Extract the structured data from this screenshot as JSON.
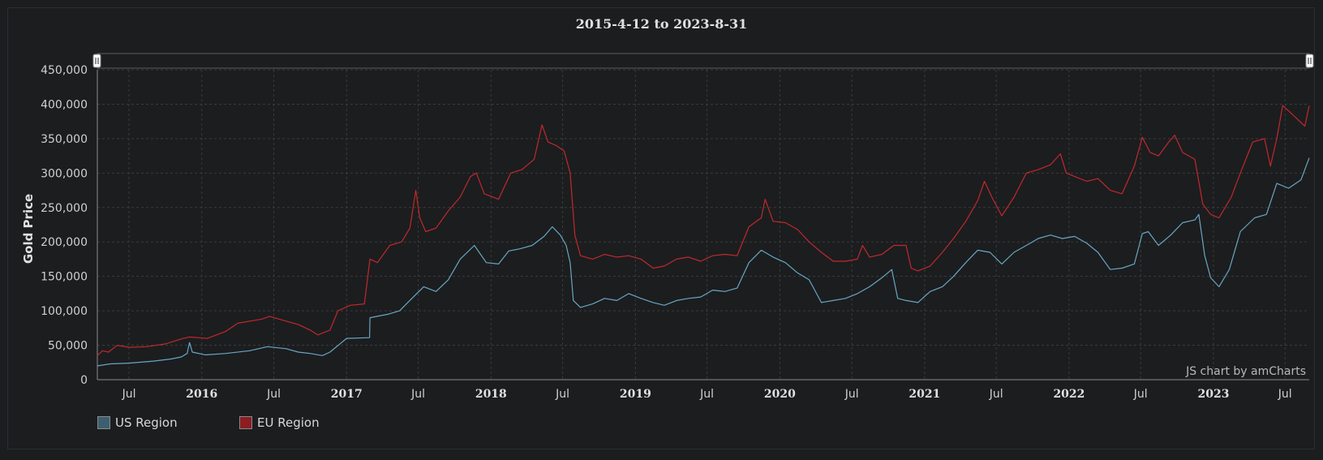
{
  "chart_data": {
    "type": "line",
    "title": "2015-4-12 to 2023-8-31",
    "xlabel": "",
    "ylabel": "Gold Price",
    "ylim": [
      0,
      450000
    ],
    "xlim": [
      "2015-04-12",
      "2023-08-31"
    ],
    "grid": true,
    "legend_position": "bottom-left",
    "credit": "JS chart by amCharts",
    "y_ticks": [
      "0",
      "50,000",
      "100,000",
      "150,000",
      "200,000",
      "250,000",
      "300,000",
      "350,000",
      "400,000",
      "450,000"
    ],
    "x_ticks": [
      {
        "label": "Jul",
        "date": "2015-07-01",
        "year": false
      },
      {
        "label": "2016",
        "date": "2016-01-01",
        "year": true
      },
      {
        "label": "Jul",
        "date": "2016-07-01",
        "year": false
      },
      {
        "label": "2017",
        "date": "2017-01-01",
        "year": true
      },
      {
        "label": "Jul",
        "date": "2017-07-01",
        "year": false
      },
      {
        "label": "2018",
        "date": "2018-01-01",
        "year": true
      },
      {
        "label": "Jul",
        "date": "2018-07-01",
        "year": false
      },
      {
        "label": "2019",
        "date": "2019-01-01",
        "year": true
      },
      {
        "label": "Jul",
        "date": "2019-07-01",
        "year": false
      },
      {
        "label": "2020",
        "date": "2020-01-01",
        "year": true
      },
      {
        "label": "Jul",
        "date": "2020-07-01",
        "year": false
      },
      {
        "label": "2021",
        "date": "2021-01-01",
        "year": true
      },
      {
        "label": "Jul",
        "date": "2021-07-01",
        "year": false
      },
      {
        "label": "2022",
        "date": "2022-01-01",
        "year": true
      },
      {
        "label": "Jul",
        "date": "2022-07-01",
        "year": false
      },
      {
        "label": "2023",
        "date": "2023-01-01",
        "year": true
      },
      {
        "label": "Jul",
        "date": "2023-07-01",
        "year": false
      }
    ],
    "series": [
      {
        "name": "US Region",
        "color": "#67a7c4",
        "points": [
          [
            "2015-04-12",
            20000
          ],
          [
            "2015-05-15",
            23000
          ],
          [
            "2015-07-01",
            24000
          ],
          [
            "2015-09-01",
            27000
          ],
          [
            "2015-10-15",
            30000
          ],
          [
            "2015-11-10",
            33000
          ],
          [
            "2015-11-25",
            38000
          ],
          [
            "2015-12-01",
            54000
          ],
          [
            "2015-12-08",
            40000
          ],
          [
            "2016-01-10",
            36000
          ],
          [
            "2016-03-01",
            38000
          ],
          [
            "2016-05-01",
            42000
          ],
          [
            "2016-06-15",
            48000
          ],
          [
            "2016-08-01",
            45000
          ],
          [
            "2016-09-01",
            40000
          ],
          [
            "2016-10-01",
            38000
          ],
          [
            "2016-11-01",
            35000
          ],
          [
            "2016-11-20",
            40000
          ],
          [
            "2016-12-15",
            52000
          ],
          [
            "2017-01-01",
            60000
          ],
          [
            "2017-02-28",
            61000
          ],
          [
            "2017-03-01",
            90000
          ],
          [
            "2017-04-15",
            95000
          ],
          [
            "2017-05-15",
            100000
          ],
          [
            "2017-06-15",
            118000
          ],
          [
            "2017-07-15",
            135000
          ],
          [
            "2017-08-15",
            128000
          ],
          [
            "2017-09-15",
            145000
          ],
          [
            "2017-10-15",
            175000
          ],
          [
            "2017-11-20",
            195000
          ],
          [
            "2017-12-20",
            170000
          ],
          [
            "2018-01-20",
            168000
          ],
          [
            "2018-02-15",
            187000
          ],
          [
            "2018-03-15",
            190000
          ],
          [
            "2018-04-15",
            195000
          ],
          [
            "2018-05-15",
            208000
          ],
          [
            "2018-06-05",
            222000
          ],
          [
            "2018-06-25",
            210000
          ],
          [
            "2018-07-10",
            195000
          ],
          [
            "2018-07-20",
            170000
          ],
          [
            "2018-07-28",
            115000
          ],
          [
            "2018-08-15",
            105000
          ],
          [
            "2018-09-15",
            110000
          ],
          [
            "2018-10-15",
            118000
          ],
          [
            "2018-11-15",
            115000
          ],
          [
            "2018-12-15",
            125000
          ],
          [
            "2019-01-15",
            118000
          ],
          [
            "2019-02-15",
            112000
          ],
          [
            "2019-03-15",
            108000
          ],
          [
            "2019-04-15",
            115000
          ],
          [
            "2019-05-15",
            118000
          ],
          [
            "2019-06-15",
            120000
          ],
          [
            "2019-07-15",
            130000
          ],
          [
            "2019-08-15",
            128000
          ],
          [
            "2019-09-15",
            133000
          ],
          [
            "2019-10-15",
            170000
          ],
          [
            "2019-11-15",
            188000
          ],
          [
            "2019-12-15",
            178000
          ],
          [
            "2020-01-15",
            170000
          ],
          [
            "2020-02-15",
            155000
          ],
          [
            "2020-03-15",
            145000
          ],
          [
            "2020-04-15",
            112000
          ],
          [
            "2020-05-15",
            115000
          ],
          [
            "2020-06-15",
            118000
          ],
          [
            "2020-07-15",
            125000
          ],
          [
            "2020-08-15",
            135000
          ],
          [
            "2020-09-15",
            148000
          ],
          [
            "2020-10-10",
            160000
          ],
          [
            "2020-10-25",
            118000
          ],
          [
            "2020-11-15",
            115000
          ],
          [
            "2020-12-15",
            112000
          ],
          [
            "2021-01-15",
            128000
          ],
          [
            "2021-02-15",
            135000
          ],
          [
            "2021-03-15",
            150000
          ],
          [
            "2021-04-15",
            170000
          ],
          [
            "2021-05-15",
            188000
          ],
          [
            "2021-06-15",
            185000
          ],
          [
            "2021-07-15",
            168000
          ],
          [
            "2021-08-15",
            185000
          ],
          [
            "2021-09-15",
            195000
          ],
          [
            "2021-10-15",
            205000
          ],
          [
            "2021-11-15",
            210000
          ],
          [
            "2021-12-15",
            205000
          ],
          [
            "2022-01-15",
            208000
          ],
          [
            "2022-02-15",
            198000
          ],
          [
            "2022-03-15",
            185000
          ],
          [
            "2022-04-15",
            160000
          ],
          [
            "2022-05-15",
            162000
          ],
          [
            "2022-06-15",
            168000
          ],
          [
            "2022-07-05",
            212000
          ],
          [
            "2022-07-20",
            215000
          ],
          [
            "2022-08-15",
            195000
          ],
          [
            "2022-09-15",
            210000
          ],
          [
            "2022-10-15",
            228000
          ],
          [
            "2022-11-15",
            232000
          ],
          [
            "2022-11-25",
            240000
          ],
          [
            "2022-12-10",
            180000
          ],
          [
            "2022-12-25",
            148000
          ],
          [
            "2023-01-15",
            135000
          ],
          [
            "2023-02-10",
            160000
          ],
          [
            "2023-03-10",
            215000
          ],
          [
            "2023-04-15",
            235000
          ],
          [
            "2023-05-15",
            240000
          ],
          [
            "2023-06-10",
            285000
          ],
          [
            "2023-07-10",
            278000
          ],
          [
            "2023-08-10",
            290000
          ],
          [
            "2023-08-31",
            322000
          ]
        ]
      },
      {
        "name": "EU Region",
        "color": "#c0292d",
        "points": [
          [
            "2015-04-12",
            35000
          ],
          [
            "2015-04-25",
            42000
          ],
          [
            "2015-05-10",
            40000
          ],
          [
            "2015-06-01",
            50000
          ],
          [
            "2015-07-01",
            47000
          ],
          [
            "2015-08-15",
            48000
          ],
          [
            "2015-10-01",
            52000
          ],
          [
            "2015-11-15",
            60000
          ],
          [
            "2015-12-01",
            62000
          ],
          [
            "2016-01-15",
            60000
          ],
          [
            "2016-03-01",
            70000
          ],
          [
            "2016-04-01",
            82000
          ],
          [
            "2016-06-01",
            88000
          ],
          [
            "2016-06-20",
            92000
          ],
          [
            "2016-08-01",
            85000
          ],
          [
            "2016-09-01",
            80000
          ],
          [
            "2016-10-01",
            72000
          ],
          [
            "2016-10-20",
            65000
          ],
          [
            "2016-11-20",
            72000
          ],
          [
            "2016-12-10",
            100000
          ],
          [
            "2017-01-10",
            108000
          ],
          [
            "2017-02-15",
            110000
          ],
          [
            "2017-03-01",
            175000
          ],
          [
            "2017-03-20",
            170000
          ],
          [
            "2017-04-20",
            195000
          ],
          [
            "2017-05-20",
            200000
          ],
          [
            "2017-06-10",
            220000
          ],
          [
            "2017-06-25",
            275000
          ],
          [
            "2017-07-05",
            235000
          ],
          [
            "2017-07-20",
            215000
          ],
          [
            "2017-08-15",
            220000
          ],
          [
            "2017-09-15",
            245000
          ],
          [
            "2017-10-15",
            265000
          ],
          [
            "2017-11-10",
            295000
          ],
          [
            "2017-11-25",
            300000
          ],
          [
            "2017-12-15",
            270000
          ],
          [
            "2018-01-20",
            262000
          ],
          [
            "2018-02-20",
            300000
          ],
          [
            "2018-03-20",
            305000
          ],
          [
            "2018-04-20",
            320000
          ],
          [
            "2018-05-10",
            370000
          ],
          [
            "2018-05-25",
            345000
          ],
          [
            "2018-06-15",
            340000
          ],
          [
            "2018-07-05",
            332000
          ],
          [
            "2018-07-20",
            300000
          ],
          [
            "2018-08-01",
            210000
          ],
          [
            "2018-08-15",
            180000
          ],
          [
            "2018-09-15",
            175000
          ],
          [
            "2018-10-15",
            182000
          ],
          [
            "2018-11-15",
            178000
          ],
          [
            "2018-12-15",
            180000
          ],
          [
            "2019-01-15",
            175000
          ],
          [
            "2019-02-15",
            162000
          ],
          [
            "2019-03-15",
            165000
          ],
          [
            "2019-04-15",
            175000
          ],
          [
            "2019-05-15",
            178000
          ],
          [
            "2019-06-15",
            172000
          ],
          [
            "2019-07-15",
            180000
          ],
          [
            "2019-08-15",
            182000
          ],
          [
            "2019-09-15",
            180000
          ],
          [
            "2019-10-15",
            222000
          ],
          [
            "2019-11-15",
            235000
          ],
          [
            "2019-11-25",
            262000
          ],
          [
            "2019-12-15",
            230000
          ],
          [
            "2020-01-15",
            228000
          ],
          [
            "2020-02-15",
            218000
          ],
          [
            "2020-03-15",
            200000
          ],
          [
            "2020-04-15",
            185000
          ],
          [
            "2020-05-15",
            172000
          ],
          [
            "2020-06-15",
            172000
          ],
          [
            "2020-07-15",
            175000
          ],
          [
            "2020-07-28",
            195000
          ],
          [
            "2020-08-15",
            178000
          ],
          [
            "2020-09-15",
            182000
          ],
          [
            "2020-10-15",
            195000
          ],
          [
            "2020-11-15",
            195000
          ],
          [
            "2020-11-28",
            162000
          ],
          [
            "2020-12-15",
            158000
          ],
          [
            "2021-01-15",
            165000
          ],
          [
            "2021-02-15",
            185000
          ],
          [
            "2021-03-15",
            205000
          ],
          [
            "2021-04-15",
            230000
          ],
          [
            "2021-05-15",
            260000
          ],
          [
            "2021-06-01",
            288000
          ],
          [
            "2021-06-20",
            265000
          ],
          [
            "2021-07-15",
            238000
          ],
          [
            "2021-08-15",
            265000
          ],
          [
            "2021-09-15",
            300000
          ],
          [
            "2021-10-15",
            305000
          ],
          [
            "2021-11-15",
            312000
          ],
          [
            "2021-12-10",
            328000
          ],
          [
            "2021-12-25",
            300000
          ],
          [
            "2022-01-15",
            295000
          ],
          [
            "2022-02-15",
            288000
          ],
          [
            "2022-03-15",
            292000
          ],
          [
            "2022-04-15",
            275000
          ],
          [
            "2022-05-15",
            270000
          ],
          [
            "2022-06-15",
            310000
          ],
          [
            "2022-07-05",
            352000
          ],
          [
            "2022-07-25",
            330000
          ],
          [
            "2022-08-15",
            325000
          ],
          [
            "2022-09-10",
            345000
          ],
          [
            "2022-09-25",
            355000
          ],
          [
            "2022-10-15",
            330000
          ],
          [
            "2022-11-15",
            320000
          ],
          [
            "2022-12-05",
            255000
          ],
          [
            "2022-12-25",
            240000
          ],
          [
            "2023-01-15",
            235000
          ],
          [
            "2023-02-15",
            265000
          ],
          [
            "2023-03-10",
            300000
          ],
          [
            "2023-04-10",
            345000
          ],
          [
            "2023-05-10",
            350000
          ],
          [
            "2023-05-25",
            310000
          ],
          [
            "2023-06-10",
            350000
          ],
          [
            "2023-06-25",
            398000
          ],
          [
            "2023-07-20",
            385000
          ],
          [
            "2023-08-20",
            368000
          ],
          [
            "2023-08-31",
            398000
          ]
        ]
      }
    ]
  }
}
